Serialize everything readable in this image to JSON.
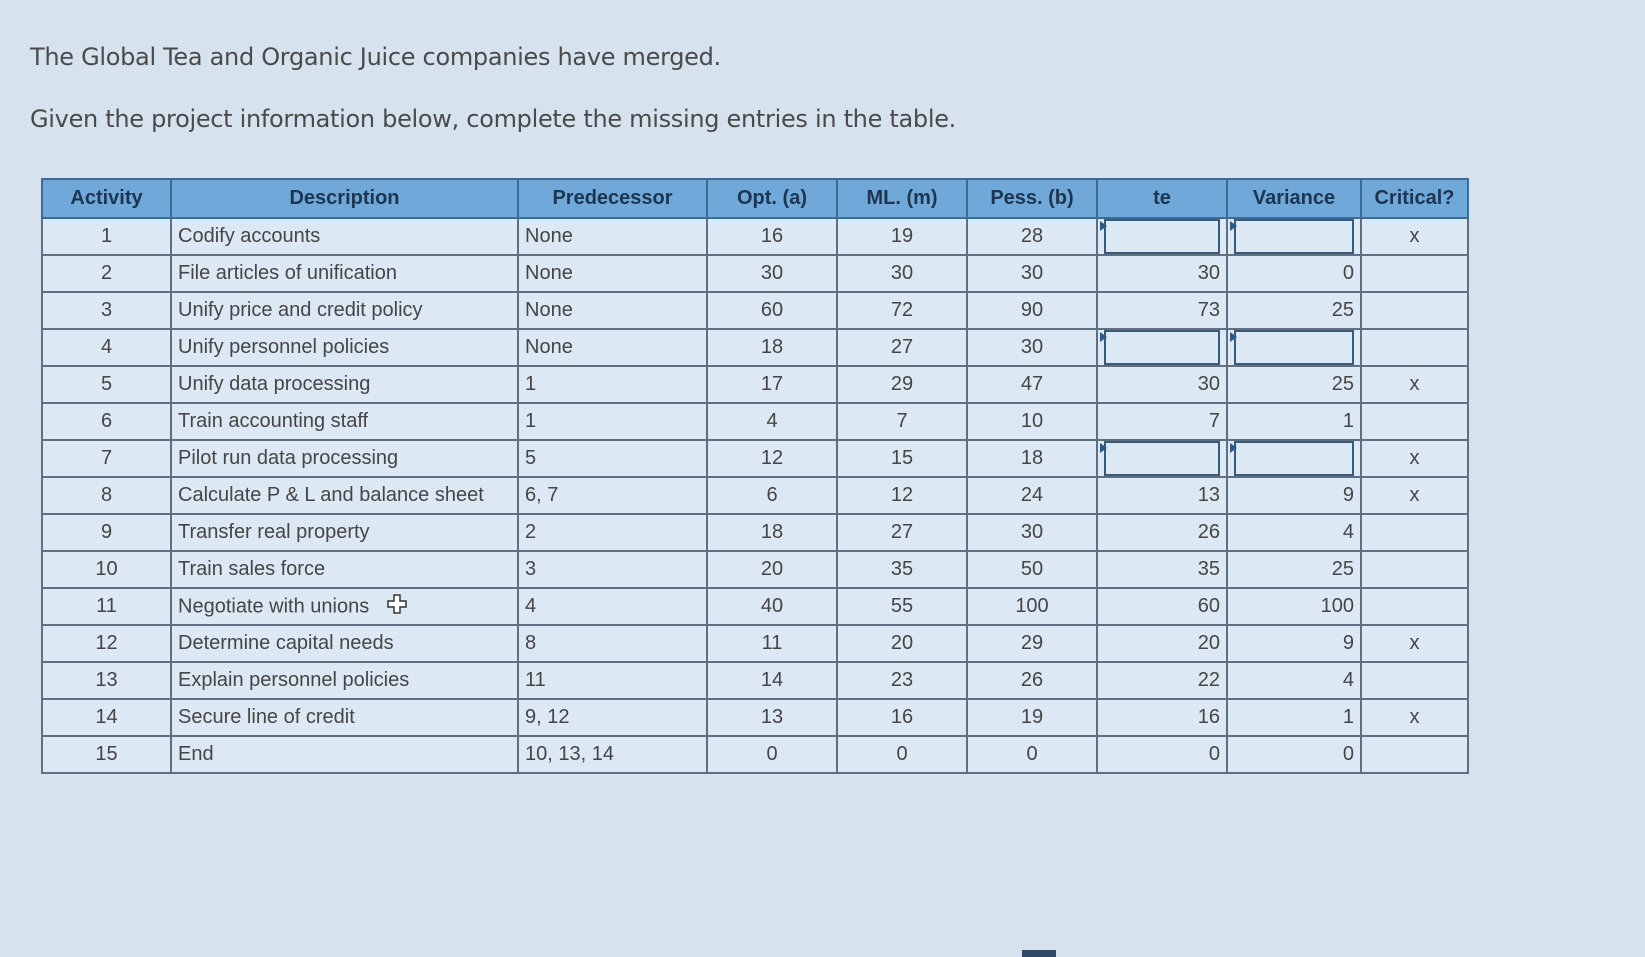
{
  "intro": {
    "line1": "The Global Tea and Organic Juice companies have merged.",
    "line2": "Given the project information below, complete the missing entries in the table."
  },
  "table": {
    "headers": [
      "Activity",
      "Description",
      "Predecessor",
      "Opt. (a)",
      "ML. (m)",
      "Pess. (b)",
      "te",
      "Variance",
      "Critical?"
    ],
    "rows": [
      {
        "activity": "1",
        "description": "Codify accounts",
        "predecessor": "None",
        "opt": "16",
        "ml": "19",
        "pess": "28",
        "te": "",
        "variance": "",
        "critical": "x",
        "te_input": true,
        "var_input": true
      },
      {
        "activity": "2",
        "description": "File articles of unification",
        "predecessor": "None",
        "opt": "30",
        "ml": "30",
        "pess": "30",
        "te": "30",
        "variance": "0",
        "critical": ""
      },
      {
        "activity": "3",
        "description": "Unify price and credit policy",
        "predecessor": "None",
        "opt": "60",
        "ml": "72",
        "pess": "90",
        "te": "73",
        "variance": "25",
        "critical": ""
      },
      {
        "activity": "4",
        "description": "Unify personnel policies",
        "predecessor": "None",
        "opt": "18",
        "ml": "27",
        "pess": "30",
        "te": "",
        "variance": "",
        "critical": "",
        "te_input": true,
        "var_input": true
      },
      {
        "activity": "5",
        "description": "Unify data processing",
        "predecessor": "1",
        "opt": "17",
        "ml": "29",
        "pess": "47",
        "te": "30",
        "variance": "25",
        "critical": "x"
      },
      {
        "activity": "6",
        "description": "Train accounting staff",
        "predecessor": "1",
        "opt": "4",
        "ml": "7",
        "pess": "10",
        "te": "7",
        "variance": "1",
        "critical": ""
      },
      {
        "activity": "7",
        "description": "Pilot run data processing",
        "predecessor": "5",
        "opt": "12",
        "ml": "15",
        "pess": "18",
        "te": "",
        "variance": "",
        "critical": "x",
        "te_input": true,
        "var_input": true
      },
      {
        "activity": "8",
        "description": "Calculate P & L and balance sheet",
        "predecessor": "6, 7",
        "opt": "6",
        "ml": "12",
        "pess": "24",
        "te": "13",
        "variance": "9",
        "critical": "x"
      },
      {
        "activity": "9",
        "description": "Transfer real property",
        "predecessor": "2",
        "opt": "18",
        "ml": "27",
        "pess": "30",
        "te": "26",
        "variance": "4",
        "critical": ""
      },
      {
        "activity": "10",
        "description": "Train sales force",
        "predecessor": "3",
        "opt": "20",
        "ml": "35",
        "pess": "50",
        "te": "35",
        "variance": "25",
        "critical": ""
      },
      {
        "activity": "11",
        "description": "Negotiate with unions",
        "predecessor": "4",
        "opt": "40",
        "ml": "55",
        "pess": "100",
        "te": "60",
        "variance": "100",
        "critical": ""
      },
      {
        "activity": "12",
        "description": "Determine capital needs",
        "predecessor": "8",
        "opt": "11",
        "ml": "20",
        "pess": "29",
        "te": "20",
        "variance": "9",
        "critical": "x"
      },
      {
        "activity": "13",
        "description": "Explain personnel policies",
        "predecessor": "11",
        "opt": "14",
        "ml": "23",
        "pess": "26",
        "te": "22",
        "variance": "4",
        "critical": ""
      },
      {
        "activity": "14",
        "description": "Secure line of credit",
        "predecessor": "9, 12",
        "opt": "13",
        "ml": "16",
        "pess": "19",
        "te": "16",
        "variance": "1",
        "critical": "x"
      },
      {
        "activity": "15",
        "description": "End",
        "predecessor": "10, 13, 14",
        "opt": "0",
        "ml": "0",
        "pess": "0",
        "te": "0",
        "variance": "0",
        "critical": ""
      }
    ]
  }
}
